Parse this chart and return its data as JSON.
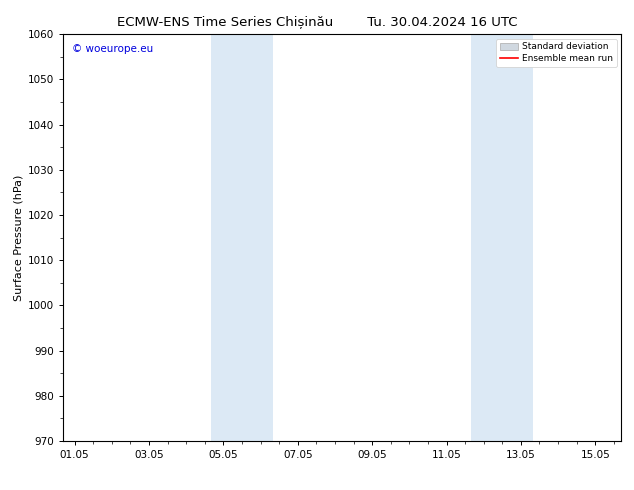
{
  "title_left": "ECMW-ENS Time Series Chișinău",
  "title_right": "Tu. 30.04.2024 16 UTC",
  "ylabel": "Surface Pressure (hPa)",
  "ylim": [
    970,
    1060
  ],
  "yticks": [
    970,
    980,
    990,
    1000,
    1010,
    1020,
    1030,
    1040,
    1050,
    1060
  ],
  "xtick_labels": [
    "01.05",
    "03.05",
    "05.05",
    "07.05",
    "09.05",
    "11.05",
    "13.05",
    "15.05"
  ],
  "xtick_positions": [
    0,
    2,
    4,
    6,
    8,
    10,
    12,
    14
  ],
  "xmin": -0.3,
  "xmax": 14.7,
  "shaded_bands": [
    {
      "x_start": 3.67,
      "x_end": 5.33
    },
    {
      "x_start": 10.67,
      "x_end": 12.33
    }
  ],
  "shade_color": "#dce9f5",
  "background_color": "#ffffff",
  "watermark_text": "© woeurope.eu",
  "watermark_color": "#0000dd",
  "legend_std_color": "#d0d8e0",
  "legend_mean_color": "#ff0000",
  "title_fontsize": 9.5,
  "ylabel_fontsize": 8,
  "tick_fontsize": 7.5,
  "watermark_fontsize": 7.5
}
